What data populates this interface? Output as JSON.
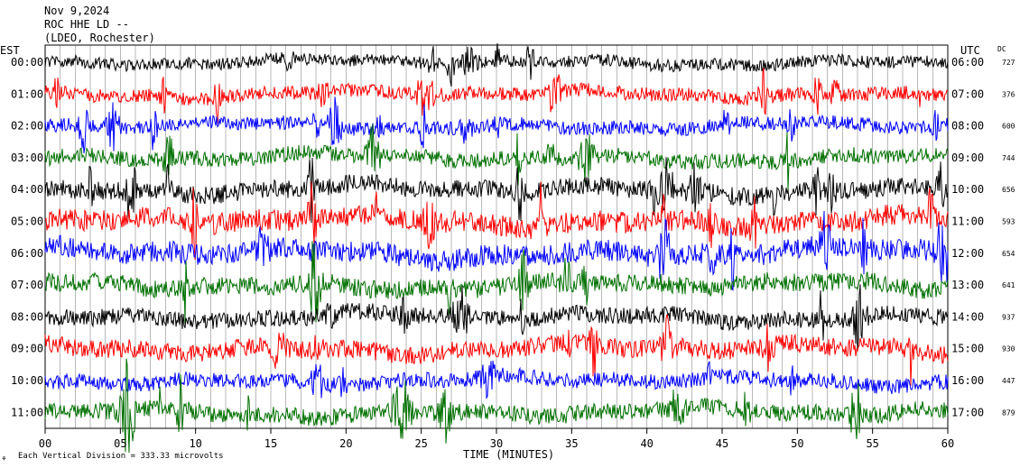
{
  "header": {
    "date": "Nov 9,2024",
    "station": "ROC HHE LD --",
    "network": "(LDEO, Rochester)"
  },
  "left_zone": "EST",
  "right_zone": "UTC",
  "dc_label": "DC",
  "footer": {
    "scale_note": "Each Vertical Division =  333.33 microvolts",
    "logo_glyph": "⚘"
  },
  "chart_data": {
    "type": "line",
    "title": "",
    "xlabel": "TIME (MINUTES)",
    "ylabel": "",
    "xlim": [
      0,
      60
    ],
    "x_ticks": [
      "00",
      "05",
      "10",
      "15",
      "20",
      "25",
      "30",
      "35",
      "40",
      "45",
      "50",
      "55",
      "60"
    ],
    "trace_colors": [
      "#000000",
      "#ff0000",
      "#0000ff",
      "#007000"
    ],
    "rows": [
      {
        "local": "00:00",
        "utc": "06:00",
        "dc": "727",
        "amp": 8
      },
      {
        "local": "01:00",
        "utc": "07:00",
        "dc": "376",
        "amp": 9
      },
      {
        "local": "02:00",
        "utc": "08:00",
        "dc": "600",
        "amp": 9
      },
      {
        "local": "03:00",
        "utc": "09:00",
        "dc": "744",
        "amp": 10
      },
      {
        "local": "04:00",
        "utc": "10:00",
        "dc": "656",
        "amp": 12
      },
      {
        "local": "05:00",
        "utc": "11:00",
        "dc": "593",
        "amp": 14
      },
      {
        "local": "06:00",
        "utc": "12:00",
        "dc": "654",
        "amp": 14
      },
      {
        "local": "07:00",
        "utc": "13:00",
        "dc": "641",
        "amp": 12
      },
      {
        "local": "08:00",
        "utc": "14:00",
        "dc": "937",
        "amp": 11
      },
      {
        "local": "09:00",
        "utc": "15:00",
        "dc": "930",
        "amp": 12
      },
      {
        "local": "10:00",
        "utc": "16:00",
        "dc": "447",
        "amp": 10
      },
      {
        "local": "11:00",
        "utc": "17:00",
        "dc": "879",
        "amp": 11
      }
    ]
  }
}
